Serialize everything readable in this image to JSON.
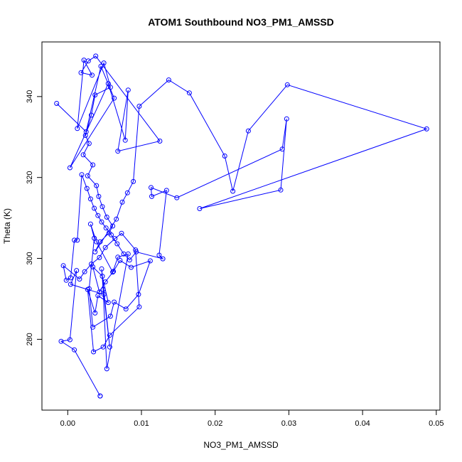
{
  "chart_data": {
    "type": "line",
    "title": "ATOM1 Southbound NO3_PM1_AMSSD",
    "xlabel": "NO3_PM1_AMSSD",
    "ylabel": "Theta (K)",
    "xlim": [
      -0.0035,
      0.0505
    ],
    "ylim": [
      262.5,
      353.5
    ],
    "x_ticks": [
      0.0,
      0.01,
      0.02,
      0.03,
      0.04,
      0.05
    ],
    "x_tick_labels": [
      "0.00",
      "0.01",
      "0.02",
      "0.03",
      "0.04",
      "0.05"
    ],
    "y_ticks": [
      280,
      300,
      320,
      340
    ],
    "y_tick_labels": [
      "280",
      "300",
      "320",
      "340"
    ],
    "grid": false,
    "legend": "none",
    "series_color": "#0000ff",
    "marker": "open-circle",
    "x": [
      -0.0015,
      0.0025,
      0.0045,
      0.0063,
      0.0003,
      0.0055,
      0.0078,
      0.0082,
      0.0068,
      0.0125,
      0.0038,
      0.0028,
      0.0018,
      0.0033,
      0.0022,
      0.0013,
      0.0049,
      0.0058,
      0.0037,
      0.0032,
      0.0024,
      0.0029,
      0.0021,
      0.0034,
      0.0027,
      0.0039,
      0.0042,
      0.0047,
      0.0053,
      0.0061,
      0.0056,
      0.0044,
      0.0037,
      0.0066,
      0.0074,
      0.0081,
      0.0089,
      0.0097,
      0.0137,
      0.0165,
      0.0213,
      0.0224,
      0.0245,
      0.0298,
      0.0487,
      0.0179,
      0.0289,
      0.0297,
      0.0291,
      0.0148,
      0.0113,
      0.0114,
      0.0134,
      0.0124,
      0.0129,
      0.0093,
      0.0084,
      0.0076,
      0.0067,
      0.0059,
      0.0052,
      0.0046,
      0.0041,
      0.0036,
      0.0031,
      0.0026,
      0.0019,
      0.0013,
      0.0009,
      0.0004,
      -0.0002,
      -0.0006,
      0.0016,
      0.0023,
      0.0032,
      0.0043,
      0.0051,
      0.0064,
      0.0073,
      0.0092,
      0.0097,
      0.0057,
      0.0048,
      0.0035,
      0.0027,
      0.0037,
      0.0041,
      0.0055,
      0.0047,
      0.0034,
      0.0043,
      0.0051,
      0.0062,
      0.0071,
      0.0086,
      0.0112,
      0.0096,
      0.0079,
      0.0063,
      0.0058,
      0.0034,
      0.0029,
      0.0036,
      0.0031,
      0.0039,
      0.0061,
      0.0068,
      0.0082,
      0.0053,
      0.0048,
      0.0046,
      0.0057,
      0.0049,
      0.0004,
      0.0012,
      0.0003,
      -0.0009,
      0.0009,
      0.0044,
      0.0044
    ],
    "y": [
      338.3,
      331.3,
      347.5,
      339.6,
      322.4,
      343.2,
      329.2,
      341.6,
      326.5,
      329.0,
      350.0,
      348.8,
      345.9,
      345.3,
      349.0,
      332.1,
      348.3,
      342.3,
      340.4,
      335.4,
      330.4,
      328.4,
      325.6,
      323.1,
      320.4,
      318.0,
      315.3,
      312.8,
      310.2,
      308.0,
      306.3,
      304.1,
      301.6,
      309.7,
      313.9,
      316.2,
      319.0,
      337.6,
      344.1,
      340.9,
      325.3,
      316.6,
      331.5,
      342.9,
      332.0,
      312.3,
      316.9,
      334.5,
      327.0,
      315.0,
      317.5,
      315.3,
      316.8,
      300.8,
      299.9,
      301.6,
      299.6,
      301.1,
      303.6,
      305.8,
      307.5,
      309.0,
      310.6,
      312.4,
      314.7,
      317.3,
      320.7,
      304.5,
      304.5,
      295.2,
      294.6,
      298.2,
      294.9,
      296.7,
      298.6,
      300.2,
      302.7,
      304.9,
      306.2,
      302.1,
      288.0,
      281.0,
      278.1,
      276.9,
      292.3,
      286.5,
      290.8,
      289.1,
      295.6,
      297.9,
      291.7,
      294.2,
      296.8,
      299.5,
      297.8,
      299.4,
      291.1,
      287.5,
      289.2,
      285.7,
      283.0,
      292.5,
      305.0,
      308.5,
      304.1,
      296.6,
      300.3,
      301.1,
      272.7,
      292.3,
      297.4,
      278.1,
      291.1,
      293.6,
      297.0,
      279.9,
      279.5,
      277.4,
      266.0,
      266.0
    ]
  }
}
